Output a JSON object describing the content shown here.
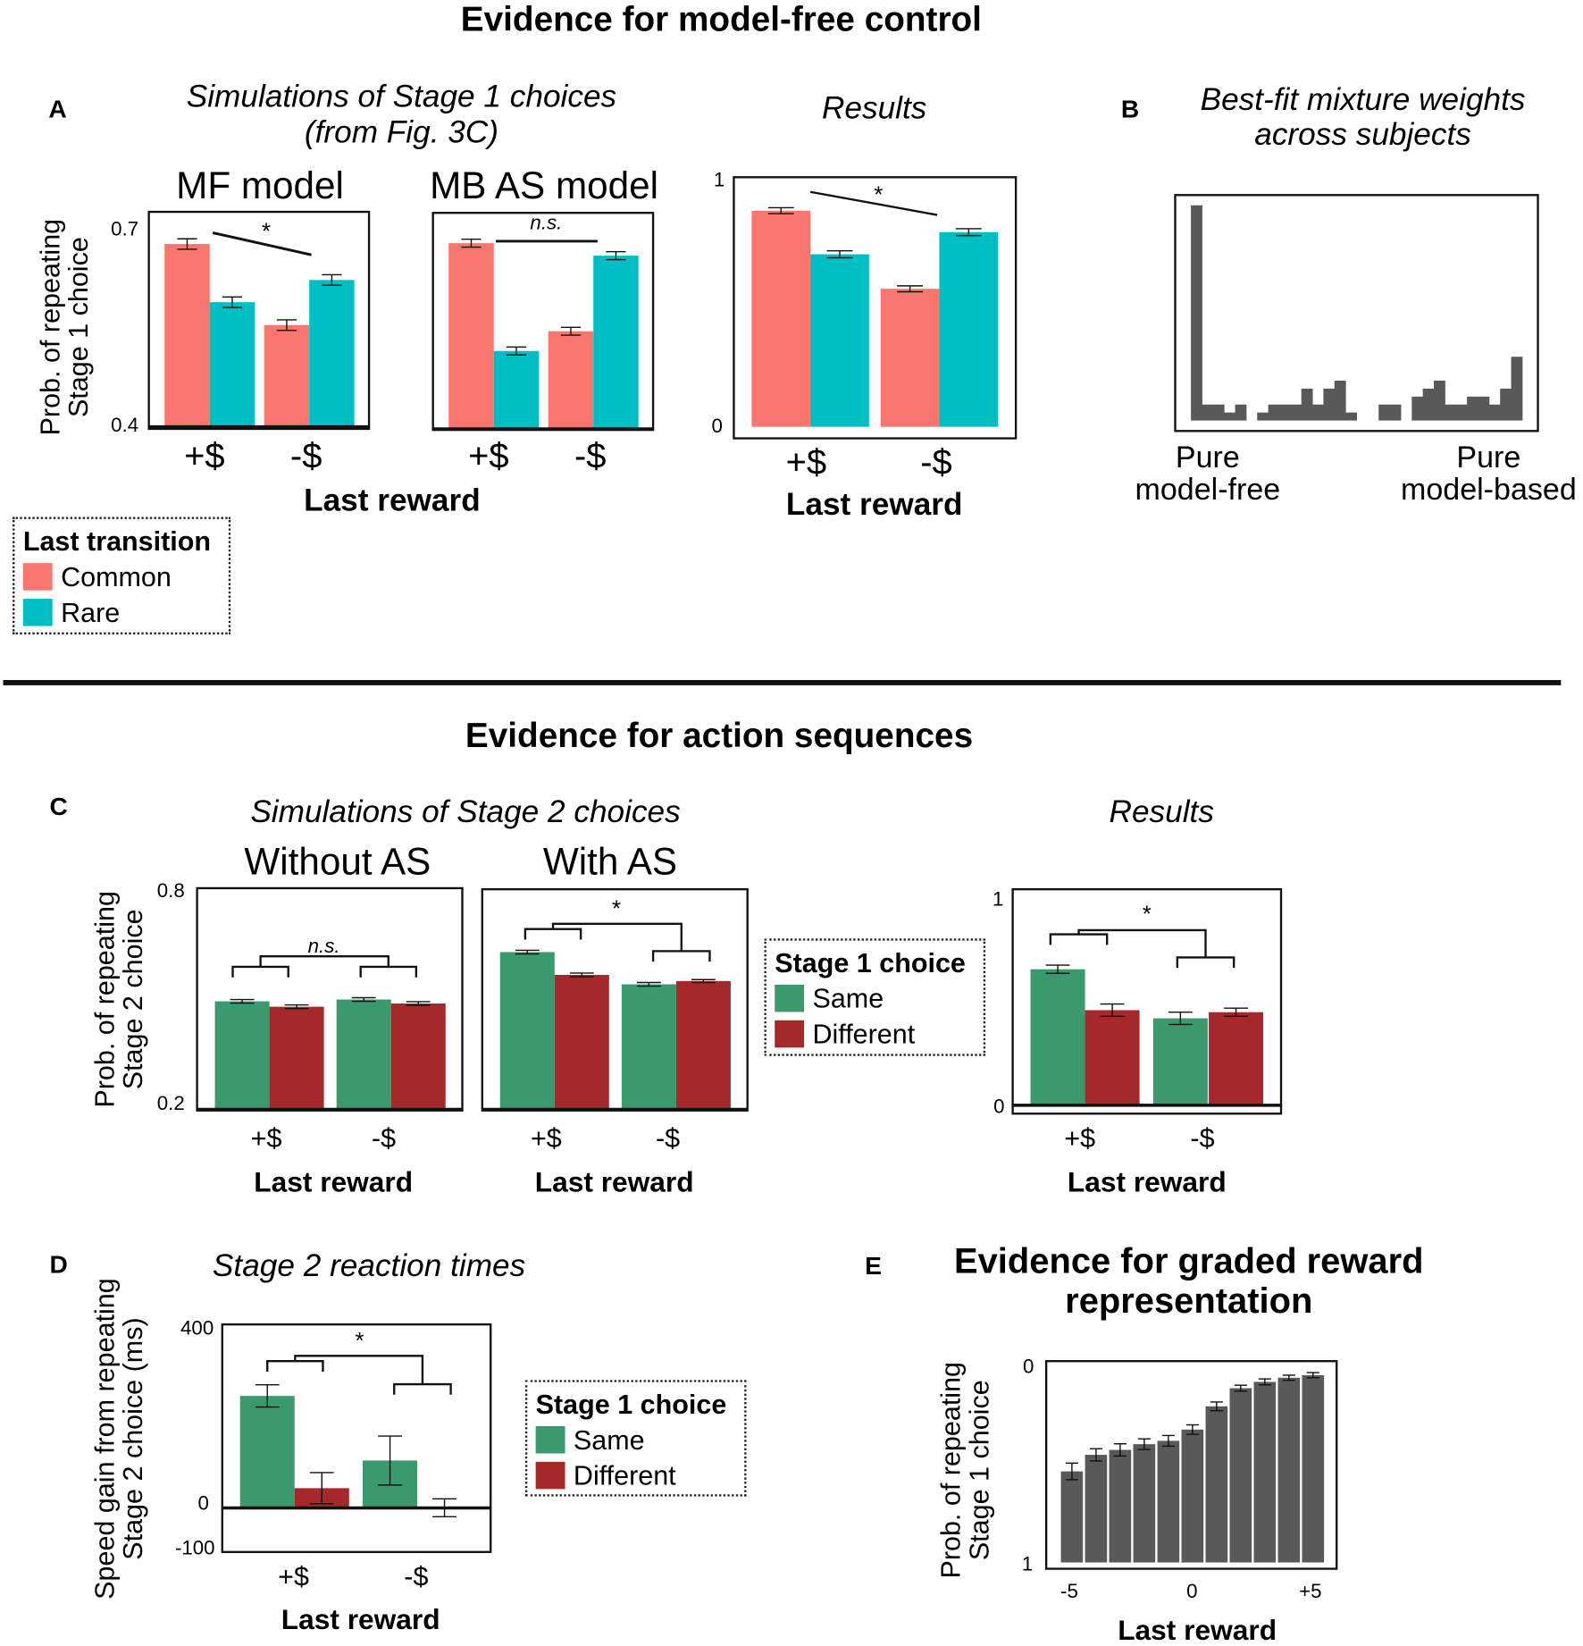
{
  "colors": {
    "common": "#F8766D",
    "rare": "#00BFC4",
    "same": "#3A9A6E",
    "different": "#A5282B",
    "gray": "#595959"
  },
  "top": {
    "title": "Evidence for model-free control",
    "label_a": "A",
    "label_b": "B",
    "sim_title_1": "Simulations of Stage 1 choices",
    "sim_title_2": "(from Fig. 3C)",
    "ylabel_1": "Prob. of repeating",
    "ylabel_2": "Stage 1 choice",
    "xlabel": "Last reward",
    "legend": {
      "title": "Last transition",
      "items": [
        "Common",
        "Rare"
      ]
    },
    "b_title_1": "Best-fit mixture weights",
    "b_title_2": "across subjects",
    "b_left_1": "Pure",
    "b_left_2": "model-free",
    "b_right_1": "Pure",
    "b_right_2": "model-based"
  },
  "bottom": {
    "title": "Evidence for action sequences",
    "label_c": "C",
    "label_d": "D",
    "label_e": "E",
    "sim_title": "Simulations of Stage 2 choices",
    "ylabel_c_1": "Prob. of repeating",
    "ylabel_c_2": "Stage 2 choice",
    "ylabel_d_1": "Speed gain from repeating",
    "ylabel_d_2": "Stage 2 choice (ms)",
    "d_title": "Stage 2 reaction times",
    "e_title_1": "Evidence for graded reward",
    "e_title_2": "representation",
    "ylabel_e_1": "Prob. of repeating",
    "ylabel_e_2": "Stage 1 choice",
    "xlabel": "Last reward",
    "legend": {
      "title": "Stage 1 choice",
      "items": [
        "Same",
        "Different"
      ]
    }
  },
  "chart_data": [
    {
      "id": "A_MF",
      "type": "bar",
      "title": "MF model",
      "categories": [
        "+$",
        "-$"
      ],
      "ylim": [
        0.4,
        0.7
      ],
      "yticks": [
        "0.7",
        "0.4"
      ],
      "annotation": "*",
      "series": [
        {
          "name": "Common",
          "values": [
            0.678,
            0.554
          ],
          "errors": [
            0.008,
            0.008
          ]
        },
        {
          "name": "Rare",
          "values": [
            0.589,
            0.623
          ],
          "errors": [
            0.008,
            0.008
          ]
        }
      ]
    },
    {
      "id": "A_MBAS",
      "type": "bar",
      "title": "MB AS model",
      "categories": [
        "+$",
        "-$"
      ],
      "ylim": [
        0.4,
        0.7
      ],
      "annotation": "n.s.",
      "series": [
        {
          "name": "Common",
          "values": [
            0.681,
            0.547
          ],
          "errors": [
            0.006,
            0.006
          ]
        },
        {
          "name": "Rare",
          "values": [
            0.517,
            0.662
          ],
          "errors": [
            0.006,
            0.006
          ]
        }
      ]
    },
    {
      "id": "A_Results",
      "type": "bar",
      "title": "Results",
      "categories": [
        "+$",
        "-$"
      ],
      "ylim": [
        0,
        1
      ],
      "yticks": [
        "1",
        "0"
      ],
      "annotation": "*",
      "series": [
        {
          "name": "Common",
          "values": [
            0.877,
            0.56
          ],
          "errors": [
            0.012,
            0.012
          ]
        },
        {
          "name": "Rare",
          "values": [
            0.7,
            0.79
          ],
          "errors": [
            0.014,
            0.014
          ]
        }
      ]
    },
    {
      "id": "B_Hist",
      "type": "bar",
      "title": "Best-fit mixture weights across subjects",
      "xrange": [
        "Pure model-free",
        "Pure model-based"
      ],
      "counts": [
        27,
        2,
        2,
        1,
        2,
        0,
        1,
        2,
        2,
        2,
        4,
        2,
        4,
        5,
        1,
        0,
        0,
        2,
        2,
        0,
        3,
        4,
        5,
        2,
        2,
        3,
        3,
        2,
        4,
        8
      ]
    },
    {
      "id": "C_WithoutAS",
      "type": "bar",
      "title": "Without AS",
      "categories": [
        "+$",
        "-$"
      ],
      "ylim": [
        0.2,
        0.8
      ],
      "yticks": [
        "0.8",
        "0.2"
      ],
      "annotation": "n.s.",
      "series": [
        {
          "name": "Same",
          "values": [
            0.496,
            0.501
          ],
          "errors": [
            0.005,
            0.005
          ]
        },
        {
          "name": "Different",
          "values": [
            0.481,
            0.49
          ],
          "errors": [
            0.005,
            0.005
          ]
        }
      ]
    },
    {
      "id": "C_WithAS",
      "type": "bar",
      "title": "With AS",
      "categories": [
        "+$",
        "-$"
      ],
      "ylim": [
        0.2,
        0.8
      ],
      "annotation": "*",
      "series": [
        {
          "name": "Same",
          "values": [
            0.632,
            0.543
          ],
          "errors": [
            0.005,
            0.005
          ]
        },
        {
          "name": "Different",
          "values": [
            0.569,
            0.552
          ],
          "errors": [
            0.005,
            0.004
          ]
        }
      ]
    },
    {
      "id": "C_Results",
      "type": "bar",
      "title": "Results",
      "categories": [
        "+$",
        "-$"
      ],
      "ylim": [
        0,
        1
      ],
      "yticks": [
        "1",
        "0"
      ],
      "annotation": "*",
      "series": [
        {
          "name": "Same",
          "values": [
            0.66,
            0.42
          ],
          "errors": [
            0.02,
            0.03
          ]
        },
        {
          "name": "Different",
          "values": [
            0.46,
            0.45
          ],
          "errors": [
            0.03,
            0.02
          ]
        }
      ]
    },
    {
      "id": "D_RT",
      "type": "bar",
      "title": "Stage 2 reaction times",
      "categories": [
        "+$",
        "-$"
      ],
      "ylim": [
        -100,
        400
      ],
      "yticks": [
        "400",
        "0",
        "-100"
      ],
      "annotation": "*",
      "series": [
        {
          "name": "Same",
          "values": [
            249,
            104
          ],
          "errors": [
            25,
            55
          ]
        },
        {
          "name": "Different",
          "values": [
            42,
            -2
          ],
          "errors": [
            35,
            20
          ]
        }
      ]
    },
    {
      "id": "E_Graded",
      "type": "bar",
      "title": "Evidence for graded reward representation",
      "categories": [
        "-5",
        "-4",
        "-3",
        "-2",
        "-1",
        "0",
        "+1",
        "+2",
        "+3",
        "+4",
        "+5"
      ],
      "xticks": [
        "-5",
        "0",
        "+5"
      ],
      "yticks": [
        "0",
        "1"
      ],
      "ylim": [
        0,
        1
      ],
      "yaxis_inverted": true,
      "values": [
        0.538,
        0.454,
        0.429,
        0.4,
        0.383,
        0.326,
        0.208,
        0.116,
        0.084,
        0.063,
        0.05
      ],
      "errors": [
        0.042,
        0.031,
        0.031,
        0.027,
        0.027,
        0.024,
        0.022,
        0.015,
        0.015,
        0.013,
        0.013
      ]
    }
  ]
}
